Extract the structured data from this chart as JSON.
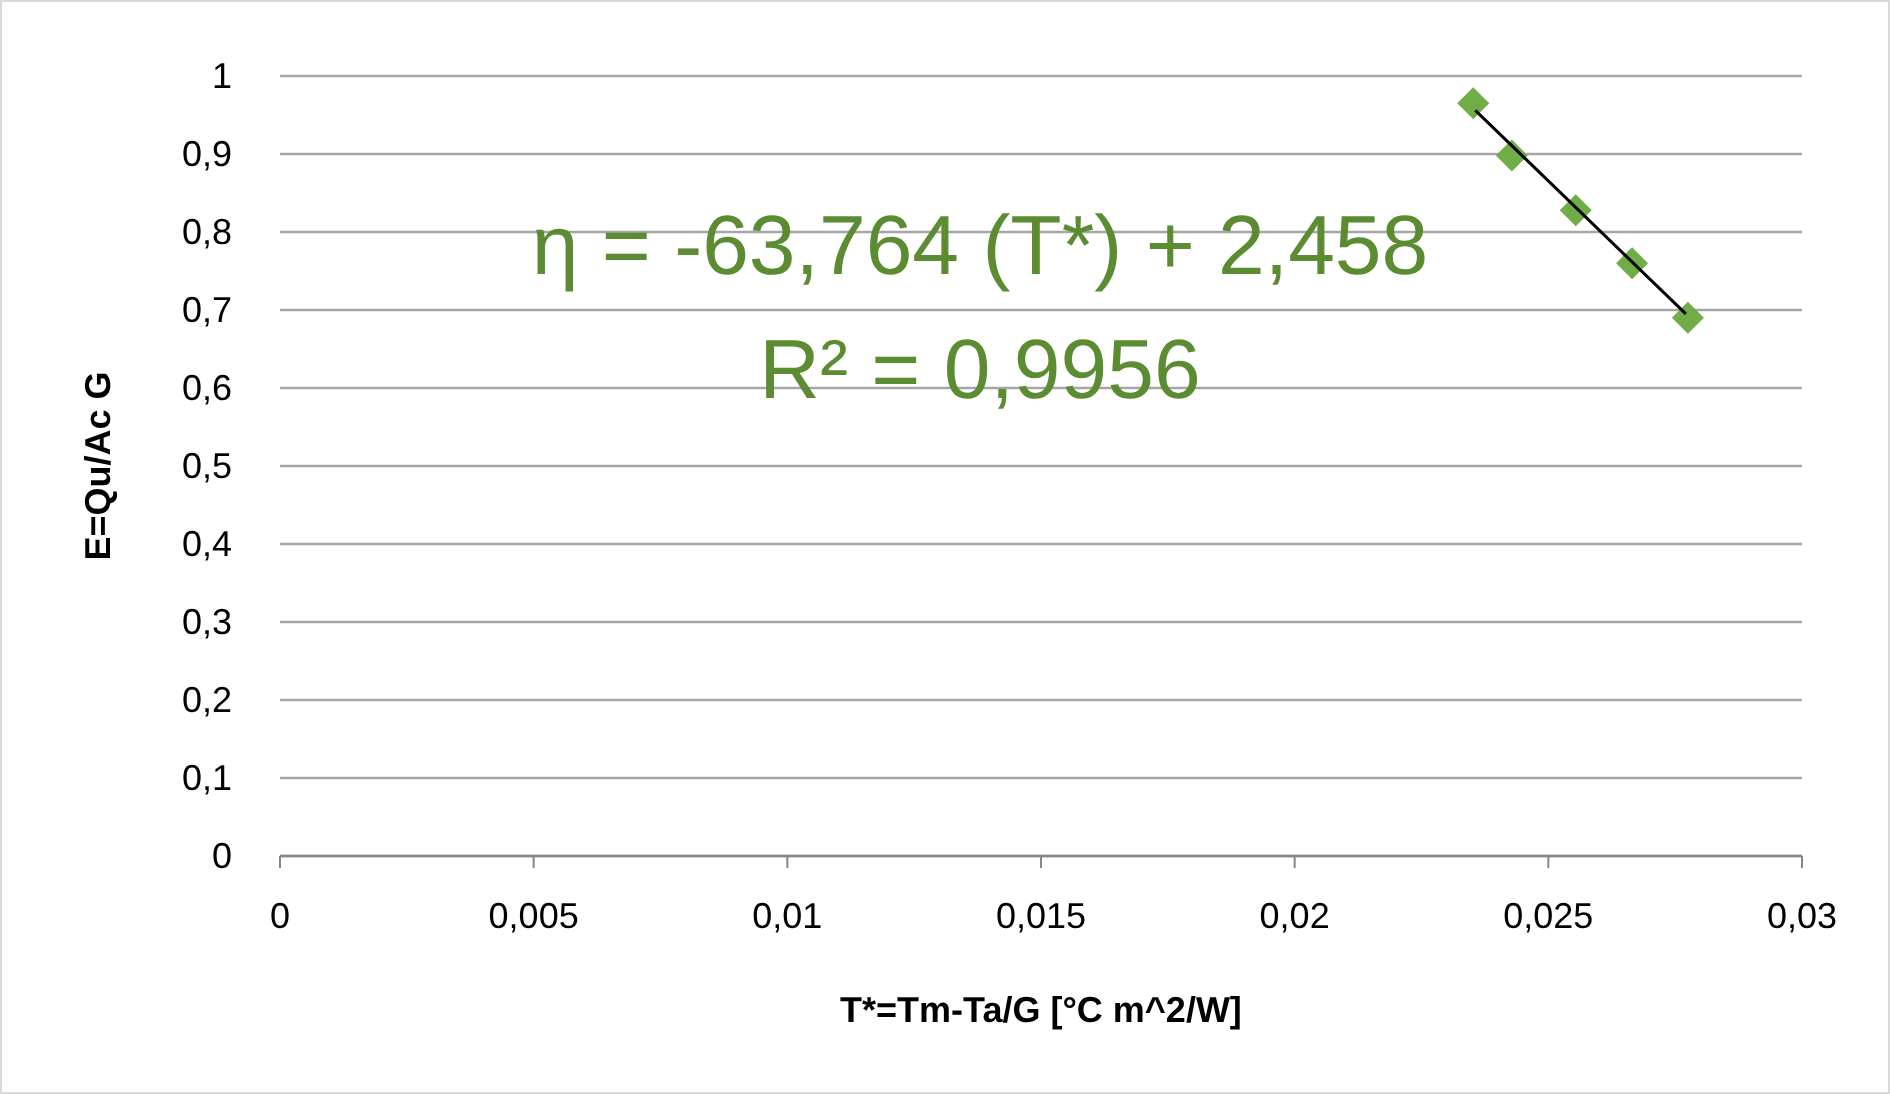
{
  "chart_data": {
    "type": "scatter",
    "xlabel": "T*=Tm-Ta/G [°C m^2/W]",
    "ylabel": "E=Qu/Ac G",
    "annotations": [
      "η = -63,764 (T*) + 2,458",
      "R² = 0,9956"
    ],
    "series": [
      {
        "type": "scatter",
        "color": "#70ad47",
        "marker": "diamond",
        "x": [
          0.02352,
          0.02428,
          0.02554,
          0.02665,
          0.02775
        ],
        "values": [
          0.965,
          0.898,
          0.828,
          0.76,
          0.69
        ]
      },
      {
        "type": "line",
        "color": "#000000",
        "marker": "none",
        "x": [
          0.02356,
          0.02771
        ],
        "values": [
          0.956,
          0.695
        ]
      }
    ],
    "xlim": [
      0,
      0.03
    ],
    "ylim": [
      0,
      1
    ],
    "xticks": [
      0,
      {
        "value": 0.005,
        "label": "0,005"
      },
      {
        "value": 0.01,
        "label": "0,01"
      },
      {
        "value": 0.015,
        "label": "0,015"
      },
      {
        "value": 0.02,
        "label": "0,02"
      },
      {
        "value": 0.025,
        "label": "0,025"
      },
      {
        "value": 0.03,
        "label": "0,03"
      }
    ],
    "yticks": [
      0,
      {
        "value": 0.1,
        "label": "0,1"
      },
      {
        "value": 0.2,
        "label": "0,2"
      },
      {
        "value": 0.3,
        "label": "0,3"
      },
      {
        "value": 0.4,
        "label": "0,4"
      },
      {
        "value": 0.5,
        "label": "0,5"
      },
      {
        "value": 0.6,
        "label": "0,6"
      },
      {
        "value": 0.7,
        "label": "0,7"
      },
      {
        "value": 0.8,
        "label": "0,8"
      },
      {
        "value": 0.9,
        "label": "0,9"
      },
      1
    ],
    "grid": "y"
  }
}
